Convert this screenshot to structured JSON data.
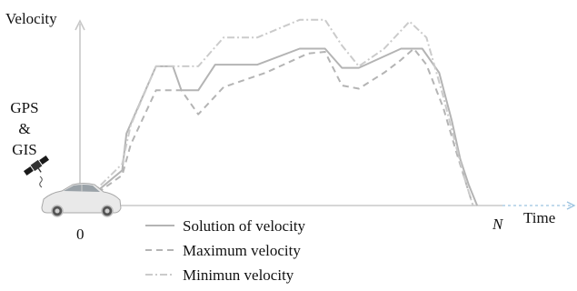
{
  "chart_data": {
    "type": "line",
    "ylabel": "Velocity",
    "xlabel": "Time",
    "x_start_label": "0",
    "x_end_label": "N",
    "side_label": [
      "GPS",
      "&",
      "GIS"
    ],
    "series": [
      {
        "name": "Solution of velocity",
        "style": "solid",
        "color": "#b4b4b4",
        "points": [
          [
            0,
            0
          ],
          [
            0.1,
            0.22
          ],
          [
            0.11,
            0.45
          ],
          [
            0.18,
            0.87
          ],
          [
            0.22,
            0.87
          ],
          [
            0.24,
            0.72
          ],
          [
            0.28,
            0.72
          ],
          [
            0.32,
            0.88
          ],
          [
            0.42,
            0.88
          ],
          [
            0.52,
            0.98
          ],
          [
            0.58,
            0.98
          ],
          [
            0.62,
            0.86
          ],
          [
            0.66,
            0.86
          ],
          [
            0.76,
            0.98
          ],
          [
            0.81,
            0.98
          ],
          [
            0.85,
            0.83
          ],
          [
            0.88,
            0.53
          ],
          [
            0.9,
            0.29
          ],
          [
            0.92,
            0.13
          ],
          [
            0.94,
            0
          ]
        ]
      },
      {
        "name": "Maximum velocity",
        "style": "dashed",
        "color": "#b4b4b4",
        "points": [
          [
            0,
            0
          ],
          [
            0.1,
            0.19
          ],
          [
            0.12,
            0.38
          ],
          [
            0.18,
            0.72
          ],
          [
            0.24,
            0.72
          ],
          [
            0.28,
            0.57
          ],
          [
            0.34,
            0.74
          ],
          [
            0.44,
            0.83
          ],
          [
            0.54,
            0.95
          ],
          [
            0.58,
            0.96
          ],
          [
            0.62,
            0.75
          ],
          [
            0.66,
            0.73
          ],
          [
            0.72,
            0.83
          ],
          [
            0.76,
            0.91
          ],
          [
            0.79,
            0.98
          ],
          [
            0.82,
            0.88
          ],
          [
            0.86,
            0.61
          ],
          [
            0.89,
            0.34
          ],
          [
            0.91,
            0.17
          ],
          [
            0.93,
            0
          ]
        ]
      },
      {
        "name": "Minimun velocity",
        "style": "dashdot",
        "color": "#cbcbcb",
        "points": [
          [
            0,
            0
          ],
          [
            0.1,
            0.26
          ],
          [
            0.12,
            0.5
          ],
          [
            0.18,
            0.87
          ],
          [
            0.22,
            0.87
          ],
          [
            0.28,
            0.87
          ],
          [
            0.34,
            1.05
          ],
          [
            0.42,
            1.05
          ],
          [
            0.52,
            1.16
          ],
          [
            0.58,
            1.16
          ],
          [
            0.62,
            1.0
          ],
          [
            0.66,
            0.87
          ],
          [
            0.72,
            0.98
          ],
          [
            0.78,
            1.15
          ],
          [
            0.82,
            1.05
          ],
          [
            0.86,
            0.68
          ],
          [
            0.89,
            0.37
          ],
          [
            0.91,
            0.17
          ],
          [
            0.93,
            0
          ]
        ]
      }
    ],
    "legend_position": "bottom-center",
    "grid": false
  },
  "colors": {
    "axis": "#c8c8c8",
    "time_arrow": "#9cc3e0",
    "text": "#111111"
  },
  "icons": {
    "vehicle": "car-icon",
    "satellite": "satellite-icon"
  }
}
